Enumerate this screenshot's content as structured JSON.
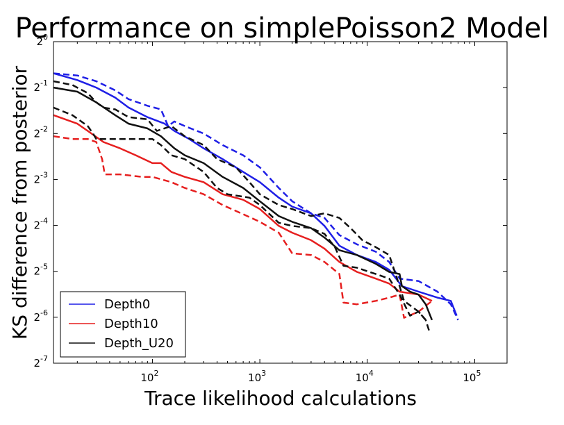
{
  "chart_data": {
    "type": "line",
    "title": "Performance on simplePoisson2 Model",
    "xlabel": "Trace likelihood calculations",
    "ylabel": "KS difference from posterior",
    "xscale": "log10",
    "yscale": "log2",
    "xlim": [
      12,
      200000
    ],
    "ylim": [
      0.0078125,
      1
    ],
    "x_ticks": [
      {
        "base": "10",
        "exp": "2",
        "value": 100
      },
      {
        "base": "10",
        "exp": "3",
        "value": 1000
      },
      {
        "base": "10",
        "exp": "4",
        "value": 10000
      },
      {
        "base": "10",
        "exp": "5",
        "value": 100000
      }
    ],
    "y_ticks": [
      {
        "base": "2",
        "exp": "0",
        "value": 1
      },
      {
        "base": "2",
        "exp": "-1",
        "value": 0.5
      },
      {
        "base": "2",
        "exp": "-2",
        "value": 0.25
      },
      {
        "base": "2",
        "exp": "-3",
        "value": 0.125
      },
      {
        "base": "2",
        "exp": "-4",
        "value": 0.0625
      },
      {
        "base": "2",
        "exp": "-5",
        "value": 0.03125
      },
      {
        "base": "2",
        "exp": "-6",
        "value": 0.015625
      },
      {
        "base": "2",
        "exp": "-7",
        "value": 0.0078125
      }
    ],
    "legend_position": "lower-left",
    "grid": false,
    "series": [
      {
        "name": "Depth0",
        "color": "#1f1fe6",
        "style": "solid",
        "x": [
          12,
          20,
          30,
          45,
          60,
          90,
          130,
          160,
          220,
          300,
          450,
          700,
          1000,
          1500,
          2000,
          3000,
          4000,
          5500,
          8000,
          12000,
          16000,
          21000,
          30000,
          45000,
          60000,
          68000
        ],
        "y": [
          0.62,
          0.56,
          0.5,
          0.43,
          0.37,
          0.32,
          0.29,
          0.26,
          0.23,
          0.2,
          0.17,
          0.14,
          0.12,
          0.095,
          0.083,
          0.075,
          0.062,
          0.046,
          0.04,
          0.036,
          0.032,
          0.025,
          0.023,
          0.021,
          0.02,
          0.016
        ]
      },
      {
        "name": "",
        "color": "#1f1fe6",
        "style": "dashed",
        "x": [
          12,
          20,
          30,
          45,
          60,
          90,
          120,
          140,
          160,
          200,
          300,
          450,
          700,
          1000,
          1500,
          2000,
          3000,
          4000,
          5500,
          8000,
          12000,
          16000,
          20000,
          30000,
          45000,
          60000,
          70000
        ],
        "y": [
          0.62,
          0.6,
          0.55,
          0.48,
          0.42,
          0.38,
          0.36,
          0.28,
          0.3,
          0.28,
          0.25,
          0.21,
          0.18,
          0.15,
          0.11,
          0.09,
          0.075,
          0.07,
          0.054,
          0.047,
          0.042,
          0.036,
          0.028,
          0.027,
          0.023,
          0.019,
          0.015
        ]
      },
      {
        "name": "Depth10",
        "color": "#e61f1f",
        "style": "solid",
        "x": [
          12,
          20,
          25,
          35,
          50,
          70,
          100,
          120,
          150,
          200,
          300,
          450,
          700,
          1000,
          1500,
          2000,
          3000,
          4000,
          5500,
          8000,
          12000,
          16000,
          20000,
          30000,
          40000
        ],
        "y": [
          0.33,
          0.29,
          0.26,
          0.22,
          0.2,
          0.18,
          0.16,
          0.16,
          0.14,
          0.13,
          0.12,
          0.1,
          0.092,
          0.08,
          0.062,
          0.056,
          0.05,
          0.044,
          0.036,
          0.031,
          0.028,
          0.026,
          0.023,
          0.022,
          0.02
        ]
      },
      {
        "name": "",
        "color": "#e61f1f",
        "style": "dashed",
        "x": [
          12,
          18,
          25,
          30,
          34,
          36,
          50,
          80,
          100,
          150,
          200,
          300,
          450,
          700,
          1000,
          1500,
          2000,
          3000,
          4000,
          5500,
          6000,
          8000,
          12000,
          16000,
          20000,
          22000,
          30000,
          40000
        ],
        "y": [
          0.24,
          0.23,
          0.23,
          0.22,
          0.17,
          0.135,
          0.135,
          0.13,
          0.13,
          0.12,
          0.11,
          0.1,
          0.085,
          0.074,
          0.066,
          0.056,
          0.041,
          0.04,
          0.036,
          0.03,
          0.0195,
          0.019,
          0.02,
          0.021,
          0.022,
          0.0155,
          0.017,
          0.02
        ]
      },
      {
        "name": "Depth_U20",
        "color": "#111111",
        "style": "solid",
        "x": [
          12,
          20,
          30,
          45,
          60,
          90,
          120,
          160,
          200,
          300,
          450,
          700,
          1000,
          1500,
          2000,
          3000,
          4000,
          5500,
          8000,
          12000,
          16000,
          20000,
          21000,
          25000,
          30000,
          35000,
          40000
        ],
        "y": [
          0.5,
          0.47,
          0.4,
          0.33,
          0.29,
          0.27,
          0.24,
          0.2,
          0.18,
          0.16,
          0.13,
          0.11,
          0.09,
          0.072,
          0.066,
          0.06,
          0.052,
          0.043,
          0.04,
          0.035,
          0.031,
          0.03,
          0.025,
          0.023,
          0.022,
          0.019,
          0.015
        ]
      },
      {
        "name": "",
        "color": "#111111",
        "style": "dashed",
        "x": [
          12,
          18,
          25,
          30,
          35,
          45,
          60,
          90,
          110,
          150,
          200,
          300,
          400,
          600,
          800,
          1000,
          1500,
          2000,
          3000,
          4000,
          5500,
          7000,
          9000,
          12000,
          16000,
          20000,
          22000,
          30000,
          35000
        ],
        "y": [
          0.55,
          0.52,
          0.46,
          0.4,
          0.37,
          0.36,
          0.32,
          0.31,
          0.26,
          0.28,
          0.24,
          0.21,
          0.17,
          0.15,
          0.12,
          0.1,
          0.085,
          0.08,
          0.072,
          0.075,
          0.07,
          0.06,
          0.05,
          0.045,
          0.04,
          0.025,
          0.02,
          0.017,
          0.015
        ]
      },
      {
        "name": "",
        "color": "#111111",
        "style": "dashed",
        "x": [
          12,
          18,
          25,
          28,
          30,
          50,
          80,
          100,
          120,
          150,
          200,
          300,
          400,
          500,
          800,
          1000,
          1500,
          2000,
          3000,
          4000,
          5000,
          6000,
          8000,
          12000,
          16000,
          20000,
          25000,
          30000,
          35000,
          38000
        ],
        "y": [
          0.37,
          0.33,
          0.28,
          0.25,
          0.23,
          0.23,
          0.23,
          0.23,
          0.21,
          0.18,
          0.17,
          0.14,
          0.11,
          0.1,
          0.095,
          0.085,
          0.065,
          0.062,
          0.06,
          0.055,
          0.045,
          0.034,
          0.033,
          0.03,
          0.028,
          0.022,
          0.016,
          0.017,
          0.015,
          0.0125
        ]
      }
    ],
    "legend": [
      {
        "label": "Depth0",
        "color": "#1f1fe6"
      },
      {
        "label": "Depth10",
        "color": "#e61f1f"
      },
      {
        "label": "Depth_U20",
        "color": "#111111"
      }
    ]
  }
}
